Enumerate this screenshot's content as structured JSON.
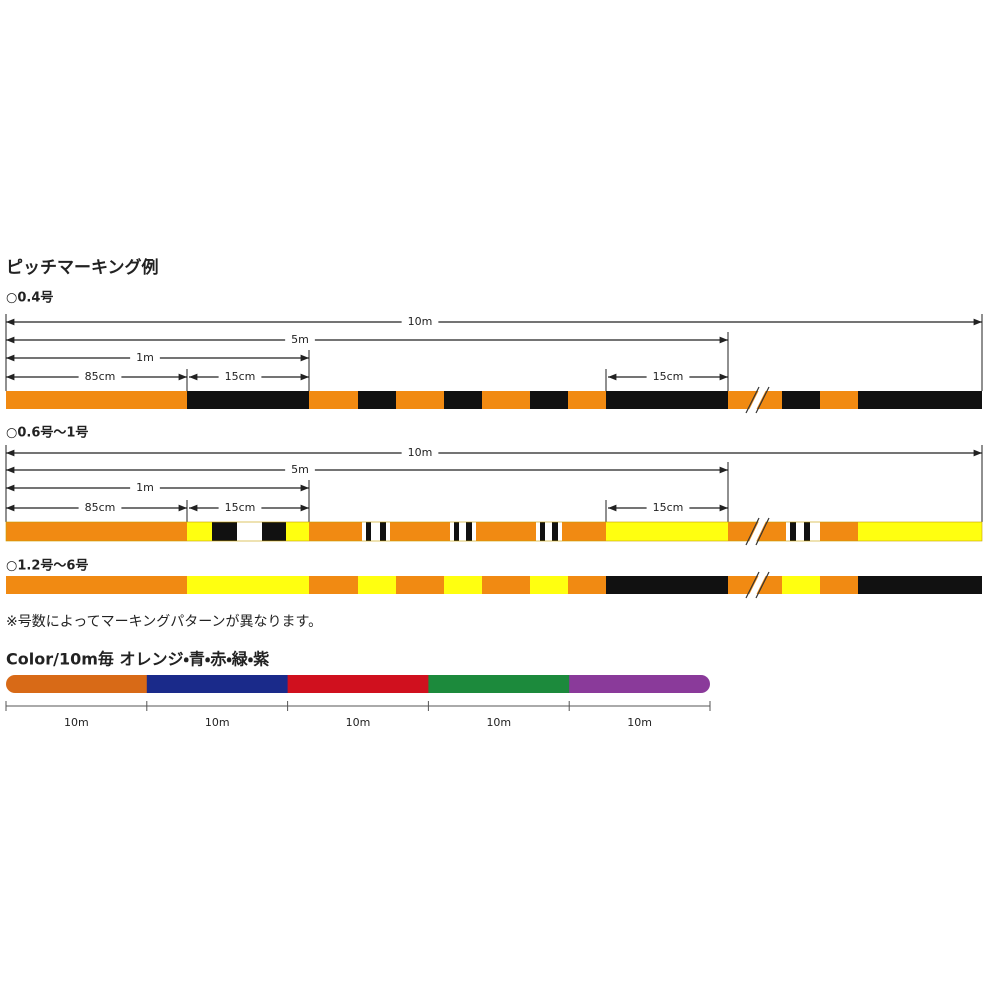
{
  "title": "ピッチマーキング例",
  "sections": [
    {
      "label": "○0.4号",
      "dimensions": [
        "10m",
        "5m",
        "1m",
        "85cm",
        "15cm",
        "15cm"
      ]
    },
    {
      "label": "○0.6号～1号",
      "dimensions": [
        "10m",
        "5m",
        "1m",
        "85cm",
        "15cm",
        "15cm"
      ]
    },
    {
      "label": "○1.2号～6号"
    }
  ],
  "note": "※号数によってマーキングパターンが異なります。",
  "color_legend": {
    "title": "Color/10m毎 オレンジ・青・赤・緑・紫",
    "segments": [
      "10m",
      "10m",
      "10m",
      "10m",
      "10m"
    ]
  }
}
